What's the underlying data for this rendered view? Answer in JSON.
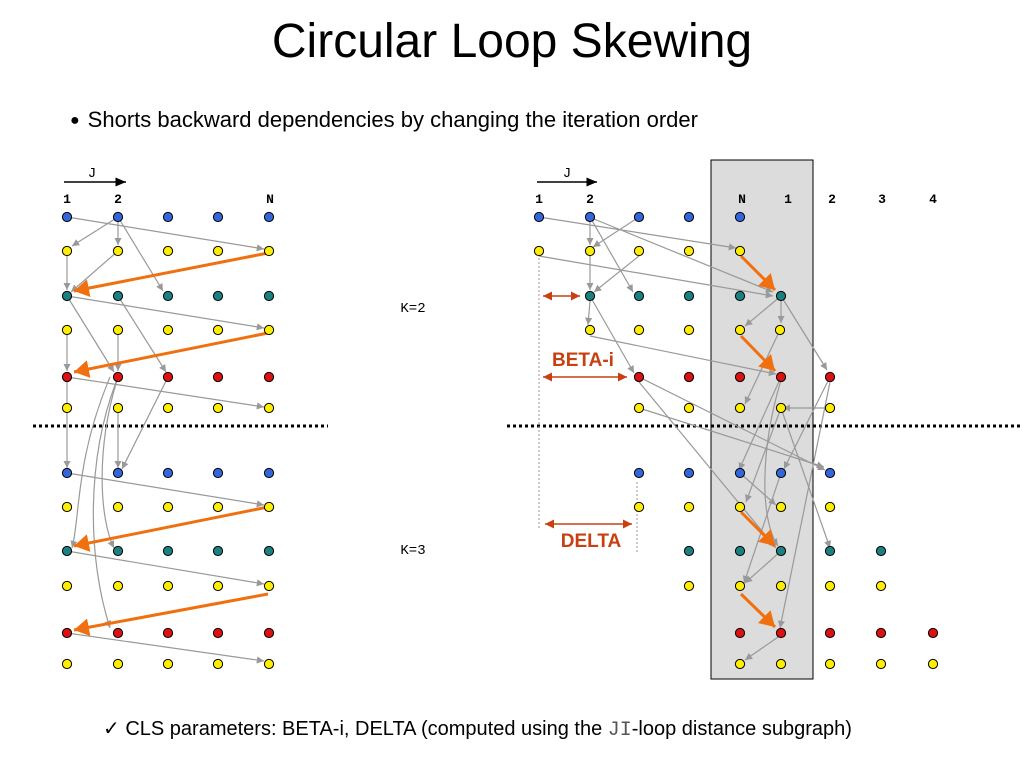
{
  "slide": {
    "title": "Circular Loop Skewing",
    "bullet": "Shorts backward dependencies by changing the iteration order",
    "footer_check": "✓",
    "footer_prefix": "CLS parameters: BETA-i, DELTA (computed using the ",
    "footer_code": "JI",
    "footer_suffix": "-loop distance subgraph)"
  },
  "diagram": {
    "left_axis_label": "J",
    "left_col_labels": [
      "1",
      "2",
      "N"
    ],
    "right_axis_label": "J",
    "right_col_labels": [
      "1",
      "2",
      "N",
      "1",
      "2",
      "3",
      "4"
    ],
    "k_labels": [
      "K=2",
      "K=3"
    ],
    "callouts": [
      "BETA-i",
      "DELTA"
    ],
    "colors": {
      "blue": "#3366dd",
      "yellow": "#ffee00",
      "teal": "#1a8080",
      "red": "#dd1111",
      "orange_arrow": "#f07010",
      "gray_arrow": "#999999",
      "callout": "#c84010",
      "shade": "#dcdcdc"
    }
  }
}
